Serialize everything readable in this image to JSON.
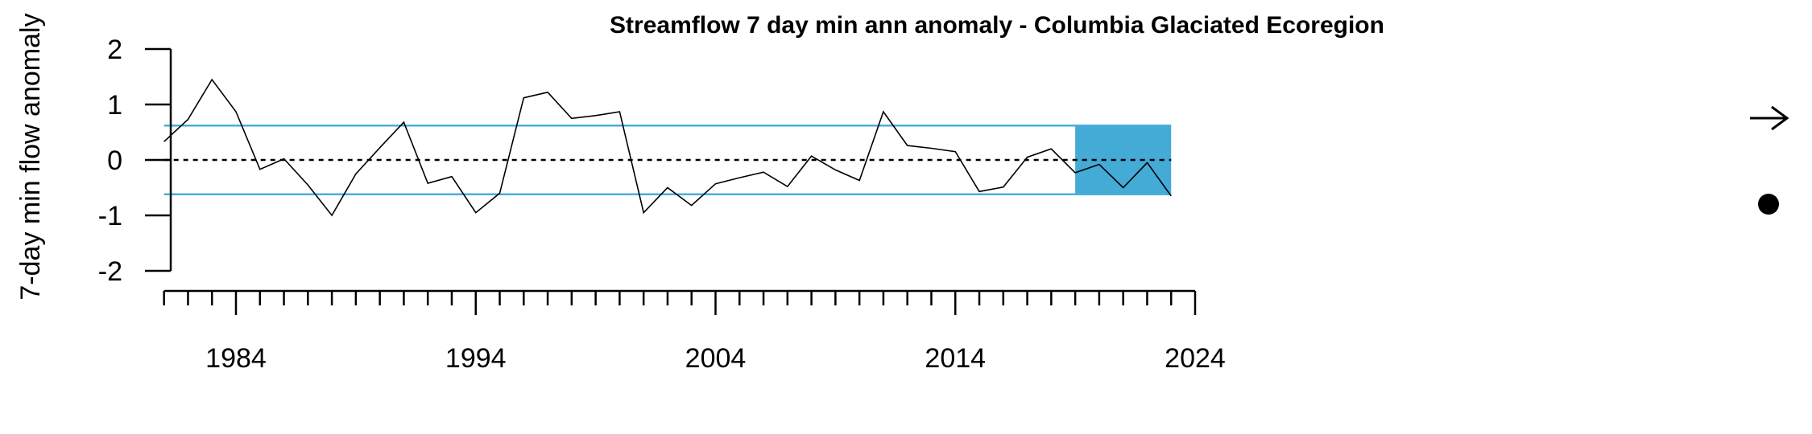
{
  "chart_data": {
    "type": "line",
    "title": "Streamflow 7 day min ann anomaly - Columbia Glaciated Ecoregion",
    "xlabel": "",
    "ylabel": "7-day min flow anomaly",
    "xlim": [
      1980,
      2024
    ],
    "ylim": [
      -2,
      2
    ],
    "x_ticks_major": [
      1984,
      1994,
      2004,
      2014,
      2024
    ],
    "y_ticks": [
      2,
      1,
      0,
      -1,
      -2
    ],
    "reference_lines": {
      "upper": 0.62,
      "lower": -0.62,
      "zero": 0,
      "color": "#4aaed9"
    },
    "highlight_band": {
      "x": [
        2019,
        2023
      ],
      "y": [
        -0.62,
        0.62
      ],
      "color": "#44aad6"
    },
    "series": [
      {
        "x": [
          1981,
          1982,
          1983,
          1984,
          1985,
          1986,
          1987,
          1988,
          1989,
          1990,
          1991,
          1992,
          1993,
          1994,
          1995,
          1996,
          1997,
          1998,
          1999,
          2000,
          2001,
          2002,
          2003,
          2004,
          2005,
          2006,
          2007,
          2008,
          2009,
          2010,
          2011,
          2012,
          2013,
          2014,
          2015,
          2016,
          2017,
          2018,
          2019,
          2020,
          2021,
          2022,
          2023
        ],
        "values": [
          0.33,
          0.73,
          1.45,
          0.87,
          -0.17,
          0.02,
          -0.45,
          -1.0,
          -0.25,
          0.22,
          0.68,
          -0.42,
          -0.3,
          -0.95,
          -0.6,
          1.12,
          1.22,
          0.75,
          0.8,
          0.87,
          -0.95,
          -0.5,
          -0.82,
          -0.43,
          -0.32,
          -0.22,
          -0.48,
          0.07,
          -0.18,
          -0.37,
          0.87,
          0.26,
          0.21,
          0.15,
          -0.57,
          -0.49,
          0.05,
          0.2,
          -0.23,
          -0.08,
          -0.5,
          -0.05,
          -0.65
        ],
        "color": "#000000"
      }
    ],
    "trend_symbol": "right-arrow",
    "status_symbol": "filled-circle",
    "grid": false,
    "legend": "none"
  }
}
